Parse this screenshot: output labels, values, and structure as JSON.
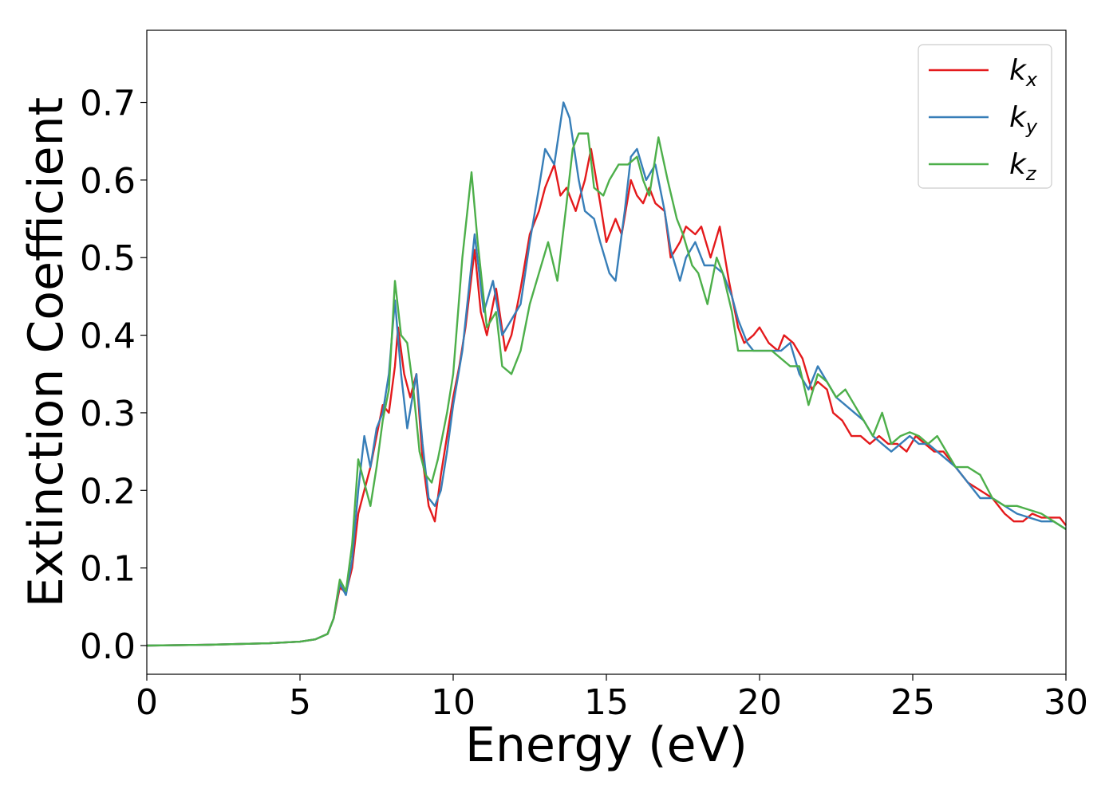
{
  "chart_data": {
    "type": "line",
    "title": "",
    "xlabel": "Energy (eV)",
    "ylabel": "Extinction Coefficient",
    "xlim": [
      0,
      30
    ],
    "ylim": [
      -0.037,
      0.793
    ],
    "xticks": [
      "0",
      "5",
      "10",
      "15",
      "20",
      "25",
      "30"
    ],
    "yticks": [
      "0.0",
      "0.1",
      "0.2",
      "0.3",
      "0.4",
      "0.5",
      "0.6",
      "0.7"
    ],
    "grid": false,
    "legend_position": "top-right",
    "series": [
      {
        "name": "k_x",
        "label_base": "k",
        "label_sub": "x",
        "color": "#e41a1c",
        "points": [
          [
            0,
            0.0
          ],
          [
            2,
            0.001
          ],
          [
            4,
            0.003
          ],
          [
            5,
            0.005
          ],
          [
            5.5,
            0.008
          ],
          [
            5.9,
            0.015
          ],
          [
            6.1,
            0.035
          ],
          [
            6.3,
            0.075
          ],
          [
            6.5,
            0.068
          ],
          [
            6.7,
            0.1
          ],
          [
            6.9,
            0.17
          ],
          [
            7.1,
            0.2
          ],
          [
            7.3,
            0.23
          ],
          [
            7.5,
            0.27
          ],
          [
            7.7,
            0.31
          ],
          [
            7.9,
            0.3
          ],
          [
            8.1,
            0.36
          ],
          [
            8.2,
            0.41
          ],
          [
            8.4,
            0.35
          ],
          [
            8.6,
            0.32
          ],
          [
            8.8,
            0.35
          ],
          [
            9.0,
            0.24
          ],
          [
            9.2,
            0.18
          ],
          [
            9.4,
            0.16
          ],
          [
            9.6,
            0.22
          ],
          [
            9.8,
            0.27
          ],
          [
            10.0,
            0.32
          ],
          [
            10.2,
            0.36
          ],
          [
            10.4,
            0.41
          ],
          [
            10.7,
            0.51
          ],
          [
            10.9,
            0.43
          ],
          [
            11.1,
            0.4
          ],
          [
            11.4,
            0.46
          ],
          [
            11.7,
            0.38
          ],
          [
            11.9,
            0.4
          ],
          [
            12.2,
            0.46
          ],
          [
            12.5,
            0.53
          ],
          [
            12.8,
            0.56
          ],
          [
            13.0,
            0.59
          ],
          [
            13.3,
            0.62
          ],
          [
            13.5,
            0.58
          ],
          [
            13.7,
            0.59
          ],
          [
            14.0,
            0.56
          ],
          [
            14.3,
            0.6
          ],
          [
            14.5,
            0.64
          ],
          [
            14.8,
            0.57
          ],
          [
            15.0,
            0.52
          ],
          [
            15.3,
            0.55
          ],
          [
            15.5,
            0.53
          ],
          [
            15.8,
            0.6
          ],
          [
            16.0,
            0.58
          ],
          [
            16.2,
            0.57
          ],
          [
            16.4,
            0.59
          ],
          [
            16.6,
            0.57
          ],
          [
            16.9,
            0.56
          ],
          [
            17.1,
            0.5
          ],
          [
            17.4,
            0.52
          ],
          [
            17.6,
            0.54
          ],
          [
            17.9,
            0.53
          ],
          [
            18.1,
            0.54
          ],
          [
            18.4,
            0.5
          ],
          [
            18.7,
            0.54
          ],
          [
            19.0,
            0.47
          ],
          [
            19.3,
            0.41
          ],
          [
            19.5,
            0.39
          ],
          [
            19.8,
            0.4
          ],
          [
            20.0,
            0.41
          ],
          [
            20.3,
            0.39
          ],
          [
            20.6,
            0.38
          ],
          [
            20.8,
            0.4
          ],
          [
            21.1,
            0.39
          ],
          [
            21.4,
            0.37
          ],
          [
            21.7,
            0.33
          ],
          [
            21.9,
            0.34
          ],
          [
            22.2,
            0.33
          ],
          [
            22.4,
            0.3
          ],
          [
            22.7,
            0.29
          ],
          [
            23.0,
            0.27
          ],
          [
            23.3,
            0.27
          ],
          [
            23.6,
            0.26
          ],
          [
            23.9,
            0.27
          ],
          [
            24.2,
            0.26
          ],
          [
            24.5,
            0.26
          ],
          [
            24.8,
            0.25
          ],
          [
            25.1,
            0.27
          ],
          [
            25.4,
            0.26
          ],
          [
            25.7,
            0.25
          ],
          [
            26.0,
            0.25
          ],
          [
            26.4,
            0.23
          ],
          [
            26.8,
            0.21
          ],
          [
            27.2,
            0.2
          ],
          [
            27.6,
            0.19
          ],
          [
            28.0,
            0.17
          ],
          [
            28.3,
            0.16
          ],
          [
            28.6,
            0.16
          ],
          [
            28.9,
            0.17
          ],
          [
            29.2,
            0.165
          ],
          [
            29.5,
            0.165
          ],
          [
            29.8,
            0.165
          ],
          [
            30.0,
            0.155
          ]
        ]
      },
      {
        "name": "k_y",
        "label_base": "k",
        "label_sub": "y",
        "color": "#377eb8",
        "points": [
          [
            0,
            0.0
          ],
          [
            2,
            0.001
          ],
          [
            4,
            0.003
          ],
          [
            5,
            0.005
          ],
          [
            5.5,
            0.008
          ],
          [
            5.9,
            0.015
          ],
          [
            6.1,
            0.035
          ],
          [
            6.3,
            0.08
          ],
          [
            6.5,
            0.065
          ],
          [
            6.7,
            0.11
          ],
          [
            6.9,
            0.2
          ],
          [
            7.1,
            0.27
          ],
          [
            7.3,
            0.23
          ],
          [
            7.5,
            0.28
          ],
          [
            7.7,
            0.3
          ],
          [
            7.9,
            0.35
          ],
          [
            8.1,
            0.445
          ],
          [
            8.3,
            0.35
          ],
          [
            8.5,
            0.28
          ],
          [
            8.8,
            0.35
          ],
          [
            9.0,
            0.26
          ],
          [
            9.2,
            0.19
          ],
          [
            9.4,
            0.18
          ],
          [
            9.6,
            0.2
          ],
          [
            9.8,
            0.25
          ],
          [
            10.0,
            0.31
          ],
          [
            10.3,
            0.38
          ],
          [
            10.7,
            0.53
          ],
          [
            11.0,
            0.43
          ],
          [
            11.3,
            0.47
          ],
          [
            11.6,
            0.4
          ],
          [
            11.9,
            0.42
          ],
          [
            12.2,
            0.44
          ],
          [
            12.5,
            0.52
          ],
          [
            12.8,
            0.59
          ],
          [
            13.0,
            0.64
          ],
          [
            13.3,
            0.62
          ],
          [
            13.6,
            0.7
          ],
          [
            13.8,
            0.68
          ],
          [
            14.1,
            0.6
          ],
          [
            14.3,
            0.56
          ],
          [
            14.6,
            0.55
          ],
          [
            14.8,
            0.52
          ],
          [
            15.1,
            0.48
          ],
          [
            15.3,
            0.47
          ],
          [
            15.6,
            0.56
          ],
          [
            15.8,
            0.63
          ],
          [
            16.0,
            0.64
          ],
          [
            16.3,
            0.6
          ],
          [
            16.6,
            0.62
          ],
          [
            16.9,
            0.56
          ],
          [
            17.1,
            0.51
          ],
          [
            17.4,
            0.47
          ],
          [
            17.6,
            0.5
          ],
          [
            17.9,
            0.52
          ],
          [
            18.2,
            0.49
          ],
          [
            18.5,
            0.49
          ],
          [
            18.8,
            0.48
          ],
          [
            19.1,
            0.45
          ],
          [
            19.3,
            0.42
          ],
          [
            19.6,
            0.39
          ],
          [
            19.8,
            0.38
          ],
          [
            20.1,
            0.38
          ],
          [
            20.4,
            0.38
          ],
          [
            20.7,
            0.38
          ],
          [
            21.0,
            0.39
          ],
          [
            21.3,
            0.35
          ],
          [
            21.6,
            0.33
          ],
          [
            21.9,
            0.36
          ],
          [
            22.2,
            0.34
          ],
          [
            22.5,
            0.32
          ],
          [
            22.8,
            0.31
          ],
          [
            23.1,
            0.3
          ],
          [
            23.4,
            0.29
          ],
          [
            23.7,
            0.27
          ],
          [
            24.0,
            0.26
          ],
          [
            24.3,
            0.25
          ],
          [
            24.6,
            0.26
          ],
          [
            24.9,
            0.27
          ],
          [
            25.2,
            0.26
          ],
          [
            25.5,
            0.26
          ],
          [
            25.8,
            0.25
          ],
          [
            26.1,
            0.24
          ],
          [
            26.4,
            0.23
          ],
          [
            26.8,
            0.21
          ],
          [
            27.2,
            0.19
          ],
          [
            27.6,
            0.19
          ],
          [
            28.0,
            0.18
          ],
          [
            28.4,
            0.17
          ],
          [
            28.8,
            0.165
          ],
          [
            29.2,
            0.16
          ],
          [
            29.6,
            0.16
          ],
          [
            30.0,
            0.15
          ]
        ]
      },
      {
        "name": "k_z",
        "label_base": "k",
        "label_sub": "z",
        "color": "#4daf4a",
        "points": [
          [
            0,
            0.0
          ],
          [
            2,
            0.001
          ],
          [
            4,
            0.003
          ],
          [
            5,
            0.005
          ],
          [
            5.5,
            0.008
          ],
          [
            5.9,
            0.015
          ],
          [
            6.1,
            0.035
          ],
          [
            6.3,
            0.085
          ],
          [
            6.5,
            0.07
          ],
          [
            6.7,
            0.13
          ],
          [
            6.9,
            0.24
          ],
          [
            7.1,
            0.21
          ],
          [
            7.3,
            0.18
          ],
          [
            7.5,
            0.23
          ],
          [
            7.7,
            0.29
          ],
          [
            7.9,
            0.33
          ],
          [
            8.1,
            0.47
          ],
          [
            8.3,
            0.4
          ],
          [
            8.5,
            0.39
          ],
          [
            8.7,
            0.33
          ],
          [
            8.9,
            0.25
          ],
          [
            9.1,
            0.22
          ],
          [
            9.3,
            0.21
          ],
          [
            9.5,
            0.24
          ],
          [
            9.8,
            0.3
          ],
          [
            10.0,
            0.35
          ],
          [
            10.3,
            0.5
          ],
          [
            10.6,
            0.61
          ],
          [
            10.8,
            0.52
          ],
          [
            11.1,
            0.41
          ],
          [
            11.4,
            0.43
          ],
          [
            11.6,
            0.36
          ],
          [
            11.9,
            0.35
          ],
          [
            12.2,
            0.38
          ],
          [
            12.5,
            0.44
          ],
          [
            12.8,
            0.48
          ],
          [
            13.1,
            0.52
          ],
          [
            13.4,
            0.47
          ],
          [
            13.7,
            0.57
          ],
          [
            13.9,
            0.64
          ],
          [
            14.1,
            0.66
          ],
          [
            14.4,
            0.66
          ],
          [
            14.6,
            0.59
          ],
          [
            14.9,
            0.58
          ],
          [
            15.1,
            0.6
          ],
          [
            15.4,
            0.62
          ],
          [
            15.7,
            0.62
          ],
          [
            16.0,
            0.63
          ],
          [
            16.2,
            0.6
          ],
          [
            16.4,
            0.58
          ],
          [
            16.7,
            0.655
          ],
          [
            17.0,
            0.6
          ],
          [
            17.3,
            0.55
          ],
          [
            17.5,
            0.53
          ],
          [
            17.8,
            0.49
          ],
          [
            18.0,
            0.48
          ],
          [
            18.3,
            0.44
          ],
          [
            18.6,
            0.5
          ],
          [
            18.8,
            0.48
          ],
          [
            19.1,
            0.43
          ],
          [
            19.3,
            0.38
          ],
          [
            19.5,
            0.38
          ],
          [
            19.8,
            0.38
          ],
          [
            20.1,
            0.38
          ],
          [
            20.4,
            0.38
          ],
          [
            20.7,
            0.37
          ],
          [
            21.0,
            0.36
          ],
          [
            21.3,
            0.36
          ],
          [
            21.6,
            0.31
          ],
          [
            21.9,
            0.35
          ],
          [
            22.2,
            0.34
          ],
          [
            22.5,
            0.32
          ],
          [
            22.8,
            0.33
          ],
          [
            23.1,
            0.31
          ],
          [
            23.4,
            0.29
          ],
          [
            23.7,
            0.27
          ],
          [
            24.0,
            0.3
          ],
          [
            24.3,
            0.26
          ],
          [
            24.6,
            0.27
          ],
          [
            24.9,
            0.275
          ],
          [
            25.2,
            0.27
          ],
          [
            25.5,
            0.26
          ],
          [
            25.8,
            0.27
          ],
          [
            26.1,
            0.25
          ],
          [
            26.4,
            0.23
          ],
          [
            26.8,
            0.23
          ],
          [
            27.2,
            0.22
          ],
          [
            27.6,
            0.19
          ],
          [
            28.0,
            0.18
          ],
          [
            28.4,
            0.18
          ],
          [
            28.8,
            0.175
          ],
          [
            29.2,
            0.17
          ],
          [
            29.6,
            0.16
          ],
          [
            30.0,
            0.15
          ]
        ]
      }
    ]
  }
}
